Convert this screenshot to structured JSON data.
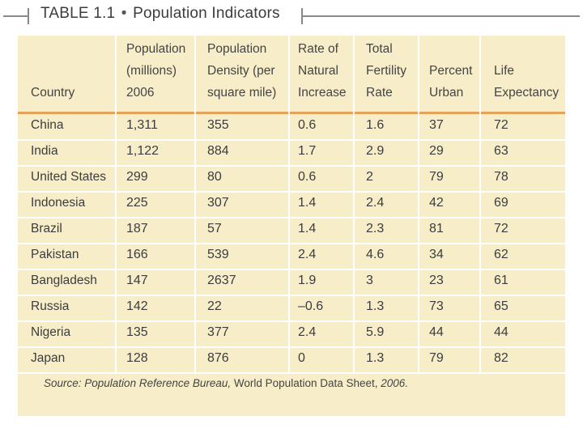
{
  "title": {
    "table_label": "TABLE 1.1",
    "bullet": "•",
    "text": "Population Indicators"
  },
  "columns": [
    {
      "line1": "",
      "line2": "",
      "line3": "Country"
    },
    {
      "line1": "Population",
      "line2": "(millions)",
      "line3": "2006"
    },
    {
      "line1": "Population",
      "line2": "Density (per",
      "line3": "square mile)"
    },
    {
      "line1": "Rate of",
      "line2": "Natural",
      "line3": "Increase"
    },
    {
      "line1": "Total",
      "line2": "Fertility",
      "line3": "Rate"
    },
    {
      "line1": "",
      "line2": "Percent",
      "line3": "Urban"
    },
    {
      "line1": "",
      "line2": "Life",
      "line3": "Expectancy"
    }
  ],
  "rows": [
    [
      "China",
      "1,311",
      "355",
      "0.6",
      "1.6",
      "37",
      "72"
    ],
    [
      "India",
      "1,122",
      "884",
      "1.7",
      "2.9",
      "29",
      "63"
    ],
    [
      "United States",
      "299",
      "80",
      "0.6",
      "2",
      "79",
      "78"
    ],
    [
      "Indonesia",
      "225",
      "307",
      "1.4",
      "2.4",
      "42",
      "69"
    ],
    [
      "Brazil",
      "187",
      "57",
      "1.4",
      "2.3",
      "81",
      "72"
    ],
    [
      "Pakistan",
      "166",
      "539",
      "2.4",
      "4.6",
      "34",
      "62"
    ],
    [
      "Bangladesh",
      "147",
      "2637",
      "1.9",
      "3",
      "23",
      "61"
    ],
    [
      "Russia",
      "142",
      "22",
      "–0.6",
      "1.3",
      "73",
      "65"
    ],
    [
      "Nigeria",
      "135",
      "377",
      "2.4",
      "5.9",
      "44",
      "44"
    ],
    [
      "Japan",
      "128",
      "876",
      "0",
      "1.3",
      "79",
      "82"
    ]
  ],
  "source": {
    "prefix": "Source: Population Reference Bureau,",
    "middle": " World Population Data Sheet, ",
    "year": "2006."
  }
}
